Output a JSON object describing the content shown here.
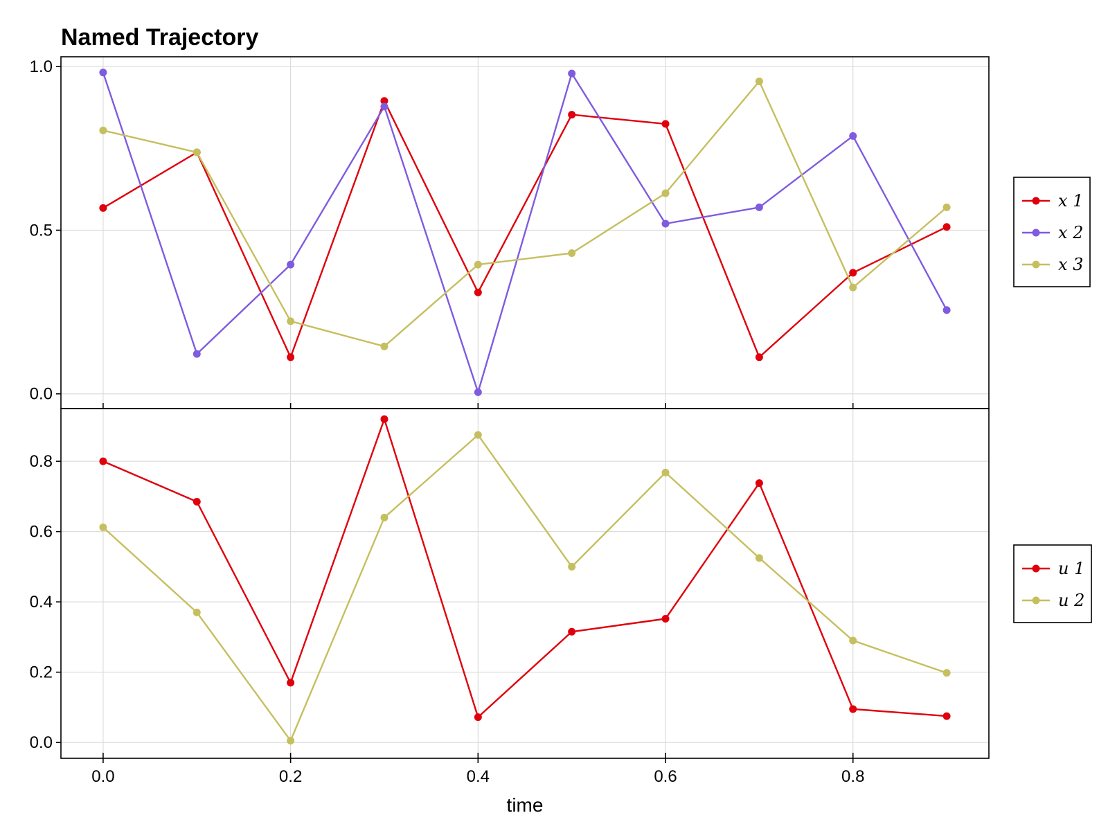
{
  "chart_data": [
    {
      "type": "line",
      "title": "Named Trajectory",
      "xlabel": "",
      "ylabel": "",
      "xlim": [
        -0.045,
        0.945
      ],
      "ylim": [
        -0.045,
        1.03
      ],
      "x": [
        0.0,
        0.1,
        0.2,
        0.3,
        0.4,
        0.5,
        0.6,
        0.7,
        0.8,
        0.9
      ],
      "xticks": [
        "0.0",
        "0.2",
        "0.4",
        "0.6",
        "0.8"
      ],
      "yticks": [
        "0.0",
        "0.5",
        "1.0"
      ],
      "grid": true,
      "legend_position": "right",
      "series": [
        {
          "name": "x 1",
          "color": "#e0000b",
          "values": [
            0.568,
            0.738,
            0.112,
            0.895,
            0.31,
            0.853,
            0.825,
            0.112,
            0.37,
            0.51
          ]
        },
        {
          "name": "x 2",
          "color": "#7f5bdf",
          "values": [
            0.982,
            0.122,
            0.395,
            0.878,
            0.005,
            0.979,
            0.52,
            0.57,
            0.788,
            0.256
          ]
        },
        {
          "name": "x 3",
          "color": "#c6bf5f",
          "values": [
            0.805,
            0.738,
            0.222,
            0.145,
            0.395,
            0.43,
            0.613,
            0.955,
            0.325,
            0.57
          ]
        }
      ]
    },
    {
      "type": "line",
      "title": "",
      "xlabel": "time",
      "ylabel": "",
      "xlim": [
        -0.045,
        0.945
      ],
      "ylim": [
        -0.045,
        0.95
      ],
      "x": [
        0.0,
        0.1,
        0.2,
        0.3,
        0.4,
        0.5,
        0.6,
        0.7,
        0.8,
        0.9
      ],
      "xticks": [
        "0.0",
        "0.2",
        "0.4",
        "0.6",
        "0.8"
      ],
      "yticks": [
        "0.0",
        "0.2",
        "0.4",
        "0.6",
        "0.8"
      ],
      "grid": true,
      "legend_position": "right",
      "series": [
        {
          "name": "u 1",
          "color": "#e0000b",
          "values": [
            0.8,
            0.685,
            0.17,
            0.92,
            0.072,
            0.315,
            0.352,
            0.738,
            0.095,
            0.075
          ]
        },
        {
          "name": "u 2",
          "color": "#c6bf5f",
          "values": [
            0.612,
            0.37,
            0.005,
            0.64,
            0.875,
            0.5,
            0.768,
            0.525,
            0.29,
            0.198
          ]
        }
      ]
    }
  ]
}
